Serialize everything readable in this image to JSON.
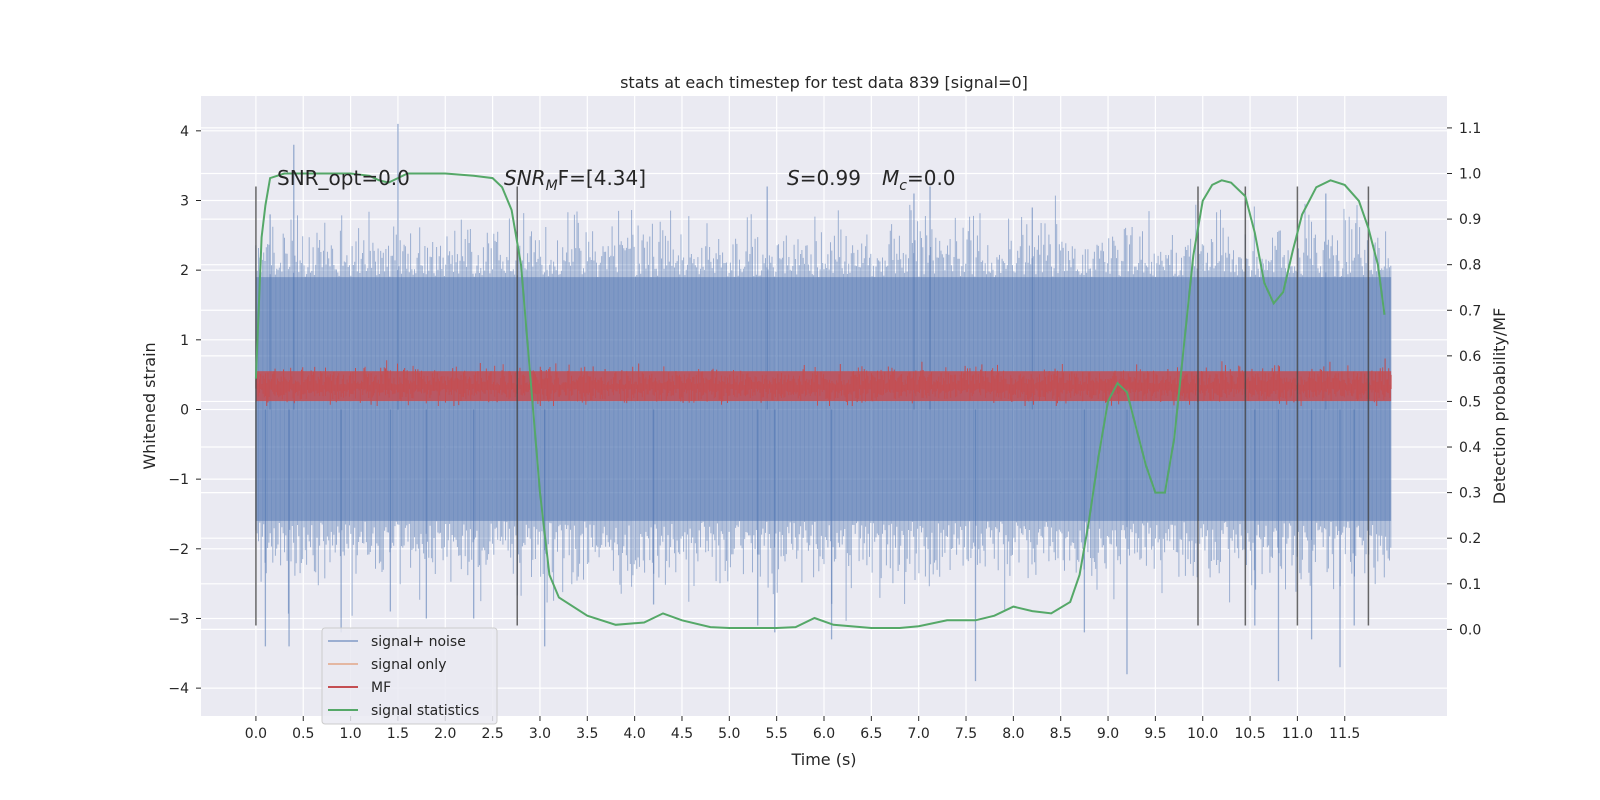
{
  "chart_data": {
    "type": "line",
    "title": "stats at each timestep for test data 839 [signal=0]",
    "xlabel": "Time (s)",
    "ylabel": "Whitened strain",
    "y2label": "Detection probability/MF",
    "xlim": [
      -0.58,
      12.58
    ],
    "ylim": [
      -4.4,
      4.5
    ],
    "y2lim": [
      -0.19,
      1.17
    ],
    "xticks": [
      0.0,
      0.5,
      1.0,
      1.5,
      2.0,
      2.5,
      3.0,
      3.5,
      4.0,
      4.5,
      5.0,
      5.5,
      6.0,
      6.5,
      7.0,
      7.5,
      8.0,
      8.5,
      9.0,
      9.5,
      10.0,
      10.5,
      11.0,
      11.5
    ],
    "xtick_labels": [
      "0.0",
      "0.5",
      "1.0",
      "1.5",
      "2.0",
      "2.5",
      "3.0",
      "3.5",
      "4.0",
      "4.5",
      "5.0",
      "5.5",
      "6.0",
      "6.5",
      "7.0",
      "7.5",
      "8.0",
      "8.5",
      "9.0",
      "9.5",
      "10.0",
      "10.5",
      "11.0",
      "11.5"
    ],
    "yticks": [
      4,
      3,
      2,
      1,
      0,
      -1,
      -2,
      -3,
      -4
    ],
    "ytick_labels": [
      "4",
      "3",
      "2",
      "1",
      "0",
      "−1",
      "−2",
      "−3",
      "−4"
    ],
    "y2ticks": [
      1.1,
      1.0,
      0.9,
      0.8,
      0.7,
      0.6,
      0.5,
      0.4,
      0.3,
      0.2,
      0.1,
      0.0
    ],
    "y2tick_labels": [
      "1.1",
      "1.0",
      "0.9",
      "0.8",
      "0.7",
      "0.6",
      "0.5",
      "0.4",
      "0.3",
      "0.2",
      "0.1",
      "0.0"
    ],
    "grid": true,
    "legend_position": "lower-left",
    "legend": [
      {
        "label": "signal+ noise",
        "color": "#4c72b0"
      },
      {
        "label": "signal only",
        "color": "#dd8452"
      },
      {
        "label": "MF",
        "color": "#c44e52"
      },
      {
        "label": "signal statistics",
        "color": "#55a868"
      }
    ],
    "annotations": {
      "snr_opt": "SNR_opt=0.0",
      "snr_mf_sym": "SNR",
      "snr_mf_sub": "M",
      "snr_mf_rest": "F=[4.34]",
      "s_sym": "S",
      "s_val": "=0.99",
      "mc_sym": "M",
      "mc_sub": "c",
      "mc_val": "=0.0"
    },
    "vlines_x": [
      0.0,
      2.76,
      9.95,
      10.45,
      11.0,
      11.75
    ],
    "vlines_ylim": [
      -3.1,
      3.2
    ],
    "noise_series": {
      "name": "signal+ noise",
      "x_range": [
        0.0,
        11.99
      ],
      "core_band": [
        -1.6,
        1.9
      ],
      "extremes": [
        {
          "x": 0.1,
          "y": -3.4
        },
        {
          "x": 0.15,
          "y": 2.8
        },
        {
          "x": 0.35,
          "y": -3.4
        },
        {
          "x": 0.4,
          "y": 3.8
        },
        {
          "x": 0.9,
          "y": -3.2
        },
        {
          "x": 1.42,
          "y": -2.9
        },
        {
          "x": 1.5,
          "y": 4.1
        },
        {
          "x": 1.8,
          "y": -3.0
        },
        {
          "x": 2.3,
          "y": -3.0
        },
        {
          "x": 3.05,
          "y": -3.4
        },
        {
          "x": 4.2,
          "y": -2.8
        },
        {
          "x": 5.3,
          "y": -3.1
        },
        {
          "x": 5.4,
          "y": 3.2
        },
        {
          "x": 5.48,
          "y": -3.2
        },
        {
          "x": 6.08,
          "y": -3.3
        },
        {
          "x": 6.95,
          "y": 3.1
        },
        {
          "x": 7.12,
          "y": 3.2
        },
        {
          "x": 7.6,
          "y": -3.9
        },
        {
          "x": 8.2,
          "y": 2.9
        },
        {
          "x": 8.75,
          "y": -3.2
        },
        {
          "x": 9.2,
          "y": -3.8
        },
        {
          "x": 10.55,
          "y": -3.1
        },
        {
          "x": 10.8,
          "y": -3.9
        },
        {
          "x": 11.15,
          "y": -3.3
        },
        {
          "x": 11.3,
          "y": 3.1
        },
        {
          "x": 11.45,
          "y": -3.7
        },
        {
          "x": 11.6,
          "y": -3.1
        }
      ]
    },
    "mf_series": {
      "name": "MF",
      "x_range": [
        0.0,
        11.99
      ],
      "band": [
        0.05,
        0.7
      ]
    },
    "signal_only_series": {
      "name": "signal only",
      "values": "none"
    },
    "signal_statistics": {
      "name": "signal statistics",
      "axis": "right",
      "points": [
        [
          0.0,
          0.55
        ],
        [
          0.06,
          0.86
        ],
        [
          0.1,
          0.93
        ],
        [
          0.15,
          0.99
        ],
        [
          0.3,
          1.0
        ],
        [
          0.6,
          1.0
        ],
        [
          1.0,
          1.0
        ],
        [
          1.2,
          0.995
        ],
        [
          1.3,
          0.985
        ],
        [
          1.4,
          0.98
        ],
        [
          1.5,
          0.99
        ],
        [
          1.6,
          1.0
        ],
        [
          2.0,
          1.0
        ],
        [
          2.3,
          0.995
        ],
        [
          2.5,
          0.99
        ],
        [
          2.6,
          0.97
        ],
        [
          2.7,
          0.92
        ],
        [
          2.8,
          0.8
        ],
        [
          2.9,
          0.55
        ],
        [
          3.0,
          0.3
        ],
        [
          3.1,
          0.12
        ],
        [
          3.2,
          0.07
        ],
        [
          3.5,
          0.03
        ],
        [
          3.8,
          0.01
        ],
        [
          4.1,
          0.015
        ],
        [
          4.3,
          0.035
        ],
        [
          4.5,
          0.02
        ],
        [
          4.8,
          0.005
        ],
        [
          5.0,
          0.003
        ],
        [
          5.5,
          0.003
        ],
        [
          5.7,
          0.005
        ],
        [
          5.9,
          0.025
        ],
        [
          6.1,
          0.01
        ],
        [
          6.5,
          0.003
        ],
        [
          6.8,
          0.003
        ],
        [
          7.0,
          0.007
        ],
        [
          7.3,
          0.02
        ],
        [
          7.6,
          0.02
        ],
        [
          7.8,
          0.03
        ],
        [
          8.0,
          0.05
        ],
        [
          8.2,
          0.04
        ],
        [
          8.4,
          0.035
        ],
        [
          8.6,
          0.06
        ],
        [
          8.7,
          0.12
        ],
        [
          8.8,
          0.24
        ],
        [
          8.9,
          0.38
        ],
        [
          9.0,
          0.5
        ],
        [
          9.1,
          0.54
        ],
        [
          9.2,
          0.52
        ],
        [
          9.3,
          0.44
        ],
        [
          9.4,
          0.36
        ],
        [
          9.5,
          0.3
        ],
        [
          9.6,
          0.3
        ],
        [
          9.7,
          0.42
        ],
        [
          9.8,
          0.62
        ],
        [
          9.9,
          0.82
        ],
        [
          10.0,
          0.94
        ],
        [
          10.1,
          0.975
        ],
        [
          10.2,
          0.985
        ],
        [
          10.3,
          0.98
        ],
        [
          10.45,
          0.95
        ],
        [
          10.55,
          0.87
        ],
        [
          10.65,
          0.76
        ],
        [
          10.75,
          0.715
        ],
        [
          10.85,
          0.74
        ],
        [
          10.95,
          0.83
        ],
        [
          11.05,
          0.91
        ],
        [
          11.2,
          0.97
        ],
        [
          11.35,
          0.985
        ],
        [
          11.5,
          0.975
        ],
        [
          11.65,
          0.94
        ],
        [
          11.75,
          0.88
        ],
        [
          11.85,
          0.8
        ],
        [
          11.92,
          0.69
        ]
      ]
    }
  }
}
